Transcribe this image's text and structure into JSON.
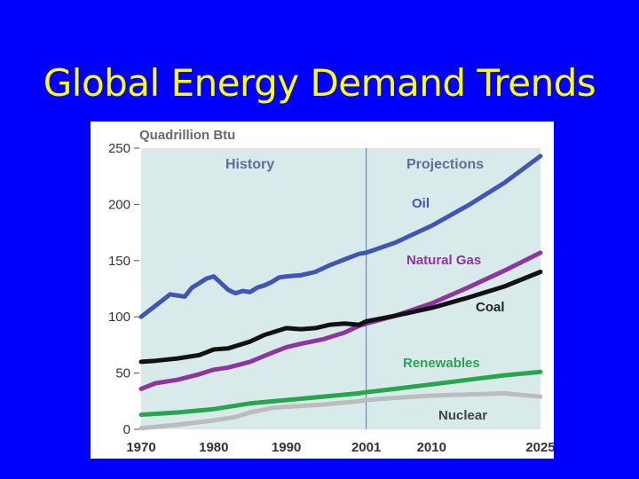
{
  "slide": {
    "title": "Global Energy Demand Trends"
  },
  "colors": {
    "background": "#0000ff",
    "title": "#ffff00",
    "plot_background": "#d8eaea",
    "period_text": "#5c6f96"
  },
  "chart_data": {
    "type": "line",
    "title": "",
    "xlabel": "",
    "ylabel": "Quadrillion Btu",
    "xlim": [
      1970,
      2025
    ],
    "ylim": [
      0,
      250
    ],
    "x_ticks": [
      1970,
      1980,
      1990,
      2001,
      2010,
      2025
    ],
    "y_ticks": [
      0,
      50,
      100,
      150,
      200,
      250
    ],
    "grid": false,
    "divider_x": 2001,
    "period_labels": {
      "history": "History",
      "projections": "Projections"
    },
    "series": [
      {
        "name": "Oil",
        "color": "#4055b5",
        "x": [
          1970,
          1972,
          1974,
          1975,
          1976,
          1977,
          1978,
          1979,
          1980,
          1981,
          1982,
          1983,
          1984,
          1985,
          1986,
          1987,
          1988,
          1989,
          1990,
          1992,
          1994,
          1996,
          1998,
          2000,
          2001,
          2005,
          2010,
          2015,
          2020,
          2025
        ],
        "values": [
          100,
          110,
          120,
          119,
          118,
          126,
          130,
          134,
          136,
          130,
          124,
          121,
          123,
          122,
          126,
          128,
          131,
          135,
          136,
          137,
          140,
          146,
          151,
          156,
          157,
          166,
          181,
          199,
          219,
          243
        ]
      },
      {
        "name": "Natural Gas",
        "color": "#8e35a0",
        "x": [
          1970,
          1972,
          1975,
          1978,
          1980,
          1982,
          1985,
          1988,
          1990,
          1992,
          1995,
          1998,
          2000,
          2001,
          2005,
          2010,
          2015,
          2020,
          2025
        ],
        "values": [
          36,
          41,
          44,
          49,
          53,
          55,
          60,
          68,
          73,
          76,
          80,
          86,
          92,
          94,
          101,
          112,
          126,
          141,
          157
        ]
      },
      {
        "name": "Coal",
        "color": "#111111",
        "x": [
          1970,
          1972,
          1975,
          1978,
          1980,
          1982,
          1985,
          1987,
          1988,
          1990,
          1992,
          1994,
          1996,
          1998,
          2000,
          2001,
          2005,
          2010,
          2015,
          2020,
          2025
        ],
        "values": [
          60,
          61,
          63,
          66,
          71,
          72,
          78,
          84,
          86,
          90,
          89,
          90,
          93,
          94,
          93,
          96,
          101,
          108,
          117,
          127,
          140
        ]
      },
      {
        "name": "Renewables",
        "color": "#27a650",
        "x": [
          1970,
          1975,
          1980,
          1985,
          1990,
          1995,
          2000,
          2001,
          2005,
          2010,
          2015,
          2020,
          2025
        ],
        "values": [
          13,
          15,
          18,
          23,
          26,
          29,
          32,
          33,
          36,
          40,
          44,
          48,
          51
        ]
      },
      {
        "name": "Nuclear",
        "color": "#bcbcbc",
        "x": [
          1970,
          1975,
          1980,
          1983,
          1985,
          1988,
          1990,
          1995,
          2000,
          2001,
          2005,
          2010,
          2015,
          2020,
          2025
        ],
        "values": [
          1,
          4,
          8,
          11,
          15,
          19,
          20,
          22,
          25,
          26,
          28,
          30,
          31,
          32,
          29
        ]
      }
    ]
  }
}
